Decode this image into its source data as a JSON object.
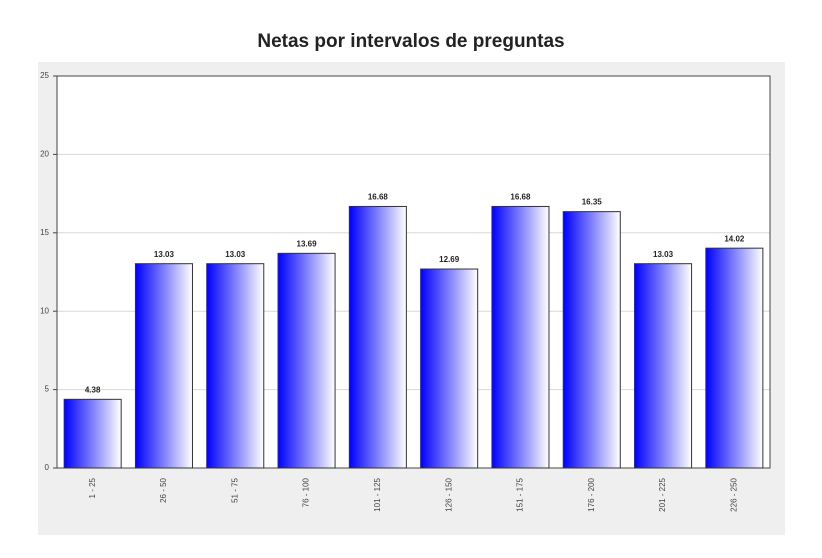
{
  "chart_data": {
    "type": "bar",
    "title": "Netas por intervalos de preguntas",
    "categories": [
      "1 - 25",
      "26 - 50",
      "51 - 75",
      "76 - 100",
      "101 - 125",
      "126 - 150",
      "151 - 175",
      "176 - 200",
      "201 - 225",
      "226 - 250"
    ],
    "values": [
      4.38,
      13.03,
      13.03,
      13.69,
      16.68,
      12.69,
      16.68,
      16.35,
      13.03,
      14.02
    ],
    "color": "#0000ff",
    "ylim": [
      0,
      25
    ],
    "yticks": [
      0,
      5,
      10,
      15,
      20,
      25
    ],
    "grid": true
  }
}
